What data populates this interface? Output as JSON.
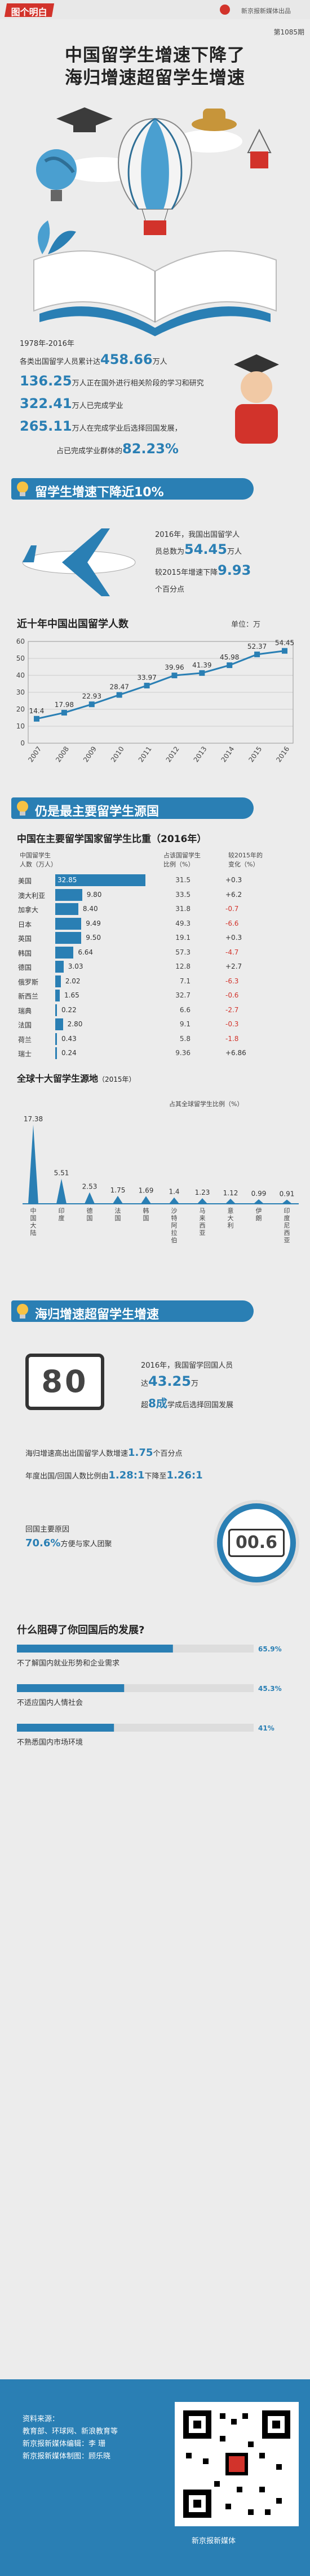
{
  "header": {
    "logo": "图个明白",
    "publisher": "新京报新媒体出品",
    "issue": "第1085期"
  },
  "title": {
    "line1": "中国留学生增速下降了",
    "line2": "海归增速超留学生增速"
  },
  "intro": {
    "l1": "1978年-2016年",
    "l2_pre": "各类出国留学人员累计达",
    "l2_num": "458.66",
    "l2_post": "万人",
    "l3_num": "136.25",
    "l3_post": "万人正在国外进行相关阶段的学习和研究",
    "l4_num": "322.41",
    "l4_post": "万人已完成学业",
    "l5_num": "265.11",
    "l5_post": "万人在完成学业后选择回国发展，",
    "l6_pre": "占已完成学业群体的",
    "l6_num": "82.23%"
  },
  "sec1": {
    "banner": "留学生增速下降近10%",
    "p1": "2016年，我国出国留学人",
    "p2_pre": "员总数为",
    "p2_num": "54.45",
    "p2_post": "万人",
    "p3_pre": "较2015年增速下降",
    "p3_num": "9.93",
    "p4": "个百分点",
    "chart_title": "近十年中国出国留学人数",
    "unit": "单位：万"
  },
  "sec2": {
    "banner": "仍是最主要留学生源国",
    "title": "中国在主要留学国家留学生比重（2016年）",
    "col1": "中国留学生",
    "col1b": "人数（万人）",
    "col2": "占该国留学生",
    "col2b": "比例（%）",
    "col3": "较2015年的",
    "col3b": "变化（%）",
    "chart2_title": "全球十大留学生源地",
    "chart2_year": "（2015年）",
    "chart2_unit": "占其全球留学生比例（%）"
  },
  "sec3": {
    "banner": "海归增速超留学生增速",
    "d1": "80",
    "p1": "2016年，我国留学回国人员",
    "p2_pre": "达",
    "p2_num": "43.25",
    "p2_post": "万",
    "p3_pre": "超",
    "p3_num": "8成",
    "p3_post": "学成后选择回国发展",
    "q1_pre": "海归增速高出出国留学人数增速",
    "q1_num": "1.75",
    "q1_post": "个百分点",
    "q2_pre": "年度出国/回国人数比例由",
    "q2_num": "1.28:1",
    "q2_mid": "下降至",
    "q2_num2": "1.26:1",
    "r1": "回国主要原因",
    "r2_num": "70.6%",
    "r2_post": "方便与家人团聚",
    "d2": "00.6"
  },
  "sec4": {
    "title": "什么阻碍了你回国后的发展?",
    "items": [
      {
        "label": "不了解国内就业形势和企业需求",
        "value": "65.9%",
        "pct": 65.9
      },
      {
        "label": "不适应国内人情社会",
        "value": "45.3%",
        "pct": 45.3
      },
      {
        "label": "不熟悉国内市场环境",
        "value": "41%",
        "pct": 41
      }
    ]
  },
  "footer": {
    "l1": "资料来源：",
    "l2": "教育部、环球网、新浪教育等",
    "l3": "新京报新媒体编辑：李 珊",
    "l4": "新京报新媒体制图：顾乐晓",
    "brand": "新京报新媒体"
  },
  "colors": {
    "primary": "#2a7fb4",
    "accent": "#d2332b",
    "bg": "#ececec"
  },
  "chart_data": [
    {
      "type": "line",
      "title": "近十年中国出国留学人数",
      "ylabel": "单位：万",
      "x": [
        "2007",
        "2008",
        "2009",
        "2010",
        "2011",
        "2012",
        "2013",
        "2014",
        "2015",
        "2016"
      ],
      "series": [
        {
          "values": [
            14.4,
            17.98,
            22.93,
            28.47,
            33.97,
            39.96,
            41.39,
            45.98,
            52.37,
            54.45
          ]
        }
      ],
      "ylim": [
        0,
        60
      ],
      "yticks": [
        0,
        10,
        20,
        30,
        40,
        50,
        60
      ]
    },
    {
      "type": "table",
      "title": "中国在主要留学国家留学生比重（2016年）",
      "rows": [
        {
          "country": "美国",
          "num": 32.85,
          "pct": "31.5",
          "chg": "+0.3"
        },
        {
          "country": "澳大利亚",
          "num": 9.8,
          "pct": "33.5",
          "chg": "+6.2"
        },
        {
          "country": "加拿大",
          "num": 8.4,
          "pct": "31.8",
          "chg": "-0.7"
        },
        {
          "country": "日本",
          "num": 9.49,
          "pct": "49.3",
          "chg": "-6.6"
        },
        {
          "country": "英国",
          "num": 9.5,
          "pct": "19.1",
          "chg": "+0.3"
        },
        {
          "country": "韩国",
          "num": 6.64,
          "pct": "57.3",
          "chg": "-4.7"
        },
        {
          "country": "德国",
          "num": 3.03,
          "pct": "12.8",
          "chg": "+2.7"
        },
        {
          "country": "俄罗斯",
          "num": 2.02,
          "pct": "7.1",
          "chg": "-6.3"
        },
        {
          "country": "新西兰",
          "num": 1.65,
          "pct": "32.7",
          "chg": "-0.6"
        },
        {
          "country": "瑞典",
          "num": 0.22,
          "pct": "6.6",
          "chg": "-2.7"
        },
        {
          "country": "法国",
          "num": 2.8,
          "pct": "9.1",
          "chg": "-0.3"
        },
        {
          "country": "荷兰",
          "num": 0.43,
          "pct": "5.8",
          "chg": "-1.8"
        },
        {
          "country": "瑞士",
          "num": 0.24,
          "pct": "9.36",
          "chg": "+6.86"
        }
      ]
    },
    {
      "type": "bar",
      "title": "全球十大留学生源地（2015年）",
      "ylabel": "占其全球留学生比例（%）",
      "categories": [
        "中国大陆",
        "印度",
        "德国",
        "法国",
        "韩国",
        "沙特阿拉伯",
        "马来西亚",
        "意大利",
        "伊朗",
        "印度尼西亚"
      ],
      "values": [
        17.38,
        5.51,
        2.53,
        1.75,
        1.69,
        1.4,
        1.23,
        1.12,
        0.99,
        0.91
      ]
    },
    {
      "type": "bar",
      "title": "什么阻碍了你回国后的发展?",
      "categories": [
        "不了解国内就业形势和企业需求",
        "不适应国内人情社会",
        "不熟悉国内市场环境"
      ],
      "values": [
        65.9,
        45.3,
        41
      ]
    }
  ]
}
